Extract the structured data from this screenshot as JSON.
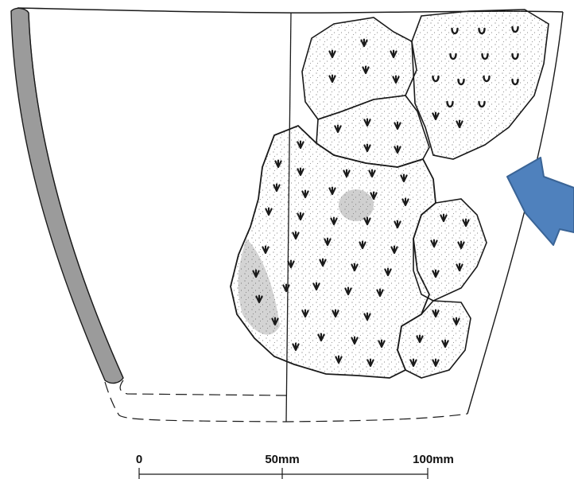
{
  "scale_bar": {
    "labels": [
      "0",
      "50mm",
      "100mm"
    ],
    "values_mm": [
      0,
      50,
      100
    ]
  },
  "colors": {
    "outline": "#1a1a1a",
    "wall_section": "#9b9b9b",
    "arrow_fill": "#4f81bd",
    "arrow_stroke": "#3a6496",
    "sherd_fill": "#ffffff",
    "background": "#ffffff"
  },
  "icons": {
    "pointer": "arrow-left-icon"
  }
}
